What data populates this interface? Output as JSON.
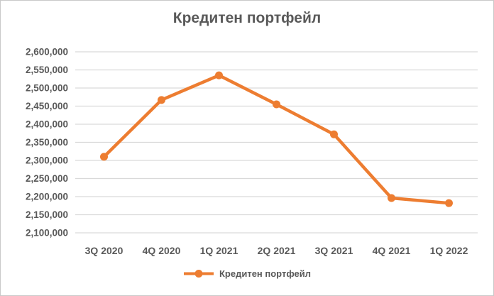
{
  "title": "Кредитен портфейл",
  "legend": {
    "label": "Кредитен портфейл"
  },
  "colors": {
    "series": "#ED7D31",
    "text": "#595959",
    "gridline": "#D9D9D9",
    "background": "#FFFFFF",
    "border": "#C9C9C9"
  },
  "chart_data": {
    "type": "line",
    "title": "Кредитен портфейл",
    "categories": [
      "3Q 2020",
      "4Q 2020",
      "1Q 2021",
      "2Q 2021",
      "3Q 2021",
      "4Q 2021",
      "1Q 2022"
    ],
    "series": [
      {
        "name": "Кредитен портфейл",
        "values": [
          2310000,
          2467000,
          2535000,
          2455000,
          2372000,
          2196000,
          2182000
        ]
      }
    ],
    "xlabel": "",
    "ylabel": "",
    "ylim": [
      2100000,
      2600000
    ],
    "ytick_step": 50000,
    "ytick_labels": [
      "2,100,000",
      "2,150,000",
      "2,200,000",
      "2,250,000",
      "2,300,000",
      "2,350,000",
      "2,400,000",
      "2,450,000",
      "2,500,000",
      "2,550,000",
      "2,600,000"
    ],
    "grid": true,
    "legend_position": "bottom",
    "marker": "circle"
  }
}
